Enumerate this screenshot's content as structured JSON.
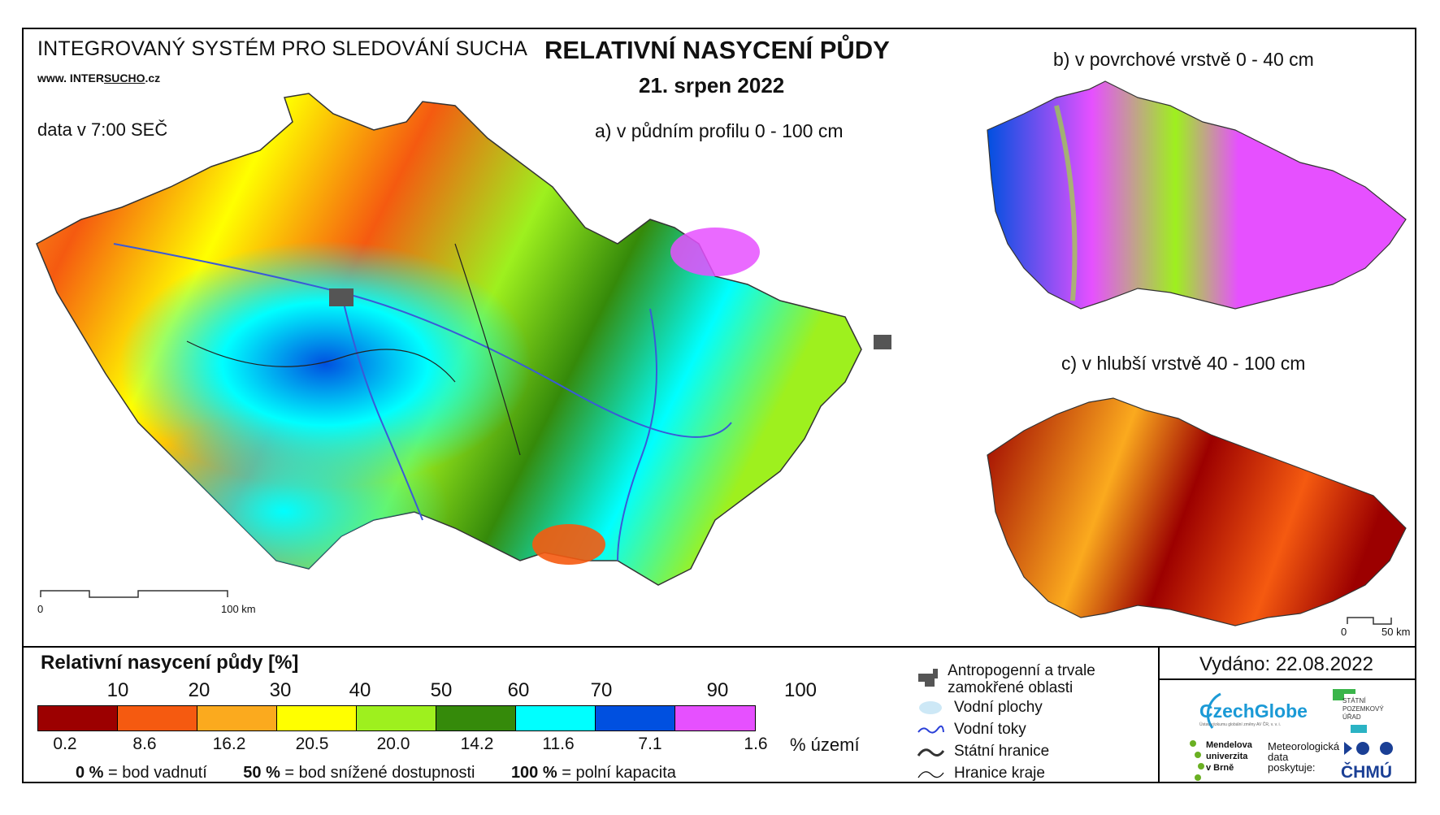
{
  "header": {
    "system_title": "INTEGROVANÝ SYSTÉM PRO SLEDOVÁNÍ SUCHA",
    "website_prefix": "www. INTER",
    "website_underlined": "SUCHO",
    "website_suffix": ".cz",
    "data_time": "data v 7:00 SEČ",
    "main_title": "RELATIVNÍ NASYCENÍ PŮDY",
    "date": "21. srpen 2022"
  },
  "maps": {
    "a_label": "a) v půdním profilu 0 - 100 cm",
    "b_label": "b) v povrchové vrstvě 0 - 40 cm",
    "c_label": "c) v hlubší vrstvě 40 - 100 cm",
    "scale_main": {
      "start": "0",
      "end": "100 km"
    },
    "scale_small": {
      "start": "0",
      "end": "50 km"
    }
  },
  "legend": {
    "title": "Relativní nasycení půdy [%]",
    "ticks": [
      "10",
      "20",
      "30",
      "40",
      "50",
      "60",
      "70",
      "90",
      "100"
    ],
    "colors": [
      "#9c0000",
      "#f55a10",
      "#fbaa1e",
      "#ffff00",
      "#9ef01e",
      "#358a0a",
      "#00ffff",
      "#0050e0",
      "#e650ff"
    ],
    "area_percent": [
      "0.2",
      "8.6",
      "16.2",
      "20.5",
      "20.0",
      "14.2",
      "11.6",
      "7.1",
      "1.6"
    ],
    "area_unit": "% území",
    "def_0_value": "0 %",
    "def_0_text": "= bod vadnutí",
    "def_50_value": "50 %",
    "def_50_text": "= bod snížené dostupnosti",
    "def_100_value": "100 %",
    "def_100_text": "= polní kapacita"
  },
  "symbols": {
    "urban": "Antropogenní a trvale zamokřené oblasti",
    "water_bodies": "Vodní plochy",
    "rivers": "Vodní toky",
    "state_border": "Státní hranice",
    "region_border": "Hranice kraje"
  },
  "footer": {
    "issued": "Vydáno: 22.08.2022",
    "czechglobe": "CzechGlobe",
    "czechglobe_sub": "Ústav výzkumu globální změny AV ČR, v. v. i.",
    "spu_line1": "STÁTNÍ",
    "spu_line2": "POZEMKOVÝ",
    "spu_line3": "ÚŘAD",
    "mendel_line1": "Mendelova",
    "mendel_line2": "univerzita",
    "mendel_line3": "v Brně",
    "met_line1": "Meteorologická",
    "met_line2": "data",
    "met_line3": "poskytuje:",
    "chmu": "ČHMÚ"
  }
}
